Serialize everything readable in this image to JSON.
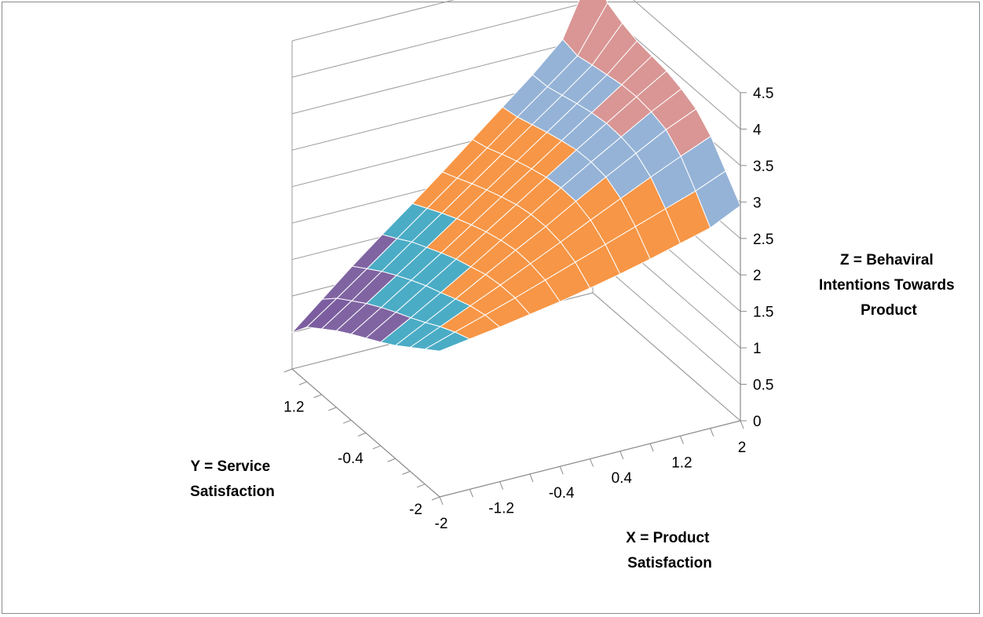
{
  "chart_data": {
    "type": "surface",
    "title": "",
    "x_axis": {
      "title_lines": [
        "X = Product",
        "Satisfaction"
      ],
      "tick_labels": [
        "-2",
        "-1.2",
        "-0.4",
        "0.4",
        "1.2",
        "2"
      ],
      "range": [
        -2,
        2
      ]
    },
    "y_axis": {
      "title_lines": [
        "Y = Service",
        "Satisfaction"
      ],
      "tick_labels": [
        "-2",
        "-0.4",
        "1.2"
      ],
      "range": [
        -2,
        2
      ]
    },
    "z_axis": {
      "title_lines": [
        "Z = Behaviral",
        "Intentions Towards",
        "Product"
      ],
      "tick_labels": [
        "0",
        "0.5",
        "1",
        "1.5",
        "2",
        "2.5",
        "3",
        "3.5",
        "4",
        "4.5"
      ],
      "range": [
        0,
        4.5
      ]
    },
    "grid_points": 11,
    "z_values": [
      [
        2.0,
        2.06,
        2.12,
        2.19,
        2.26,
        2.34,
        2.43,
        2.53,
        2.64,
        2.75,
        2.95
      ],
      [
        1.85,
        1.98,
        2.11,
        2.24,
        2.38,
        2.52,
        2.66,
        2.8,
        2.94,
        3.08,
        3.25
      ],
      [
        1.7,
        1.88,
        2.06,
        2.24,
        2.43,
        2.62,
        2.82,
        3.01,
        3.2,
        3.38,
        3.55
      ],
      [
        1.55,
        1.76,
        1.98,
        2.21,
        2.44,
        2.66,
        2.9,
        3.13,
        3.35,
        3.57,
        3.75
      ],
      [
        1.42,
        1.65,
        1.89,
        2.14,
        2.4,
        2.65,
        2.91,
        3.16,
        3.4,
        3.64,
        3.85
      ],
      [
        1.3,
        1.55,
        1.81,
        2.07,
        2.34,
        2.61,
        2.88,
        3.15,
        3.41,
        3.67,
        3.92
      ],
      [
        1.18,
        1.44,
        1.71,
        1.98,
        2.26,
        2.54,
        2.82,
        3.1,
        3.38,
        3.66,
        3.95
      ],
      [
        1.05,
        1.32,
        1.6,
        1.88,
        2.17,
        2.46,
        2.75,
        3.04,
        3.33,
        3.62,
        3.98
      ],
      [
        0.9,
        1.18,
        1.48,
        1.78,
        2.07,
        2.37,
        2.67,
        2.97,
        3.27,
        3.58,
        4.05
      ],
      [
        0.75,
        1.04,
        1.34,
        1.65,
        1.96,
        2.27,
        2.58,
        2.9,
        3.21,
        3.53,
        4.15
      ],
      [
        0.5,
        0.85,
        1.2,
        1.53,
        1.85,
        2.18,
        2.52,
        2.86,
        3.2,
        3.58,
        4.45
      ]
    ],
    "bands": [
      {
        "range": [
          0,
          0.5
        ],
        "color": "#77a03e"
      },
      {
        "range": [
          0.5,
          1.0
        ],
        "color": "#7c5ea0"
      },
      {
        "range": [
          1.0,
          1.5
        ],
        "color": "#8064a2"
      },
      {
        "range": [
          1.5,
          2.0
        ],
        "color": "#4bacc6"
      },
      {
        "range": [
          2.0,
          2.5
        ],
        "color": "#f79646"
      },
      {
        "range": [
          2.5,
          3.0
        ],
        "color": "#f79646"
      },
      {
        "range": [
          3.0,
          3.5
        ],
        "color": "#95b3d7"
      },
      {
        "range": [
          3.5,
          4.0
        ],
        "color": "#d99694"
      },
      {
        "range": [
          4.0,
          4.5
        ],
        "color": "#c3d69b"
      }
    ],
    "grid": true,
    "legend": "none"
  }
}
